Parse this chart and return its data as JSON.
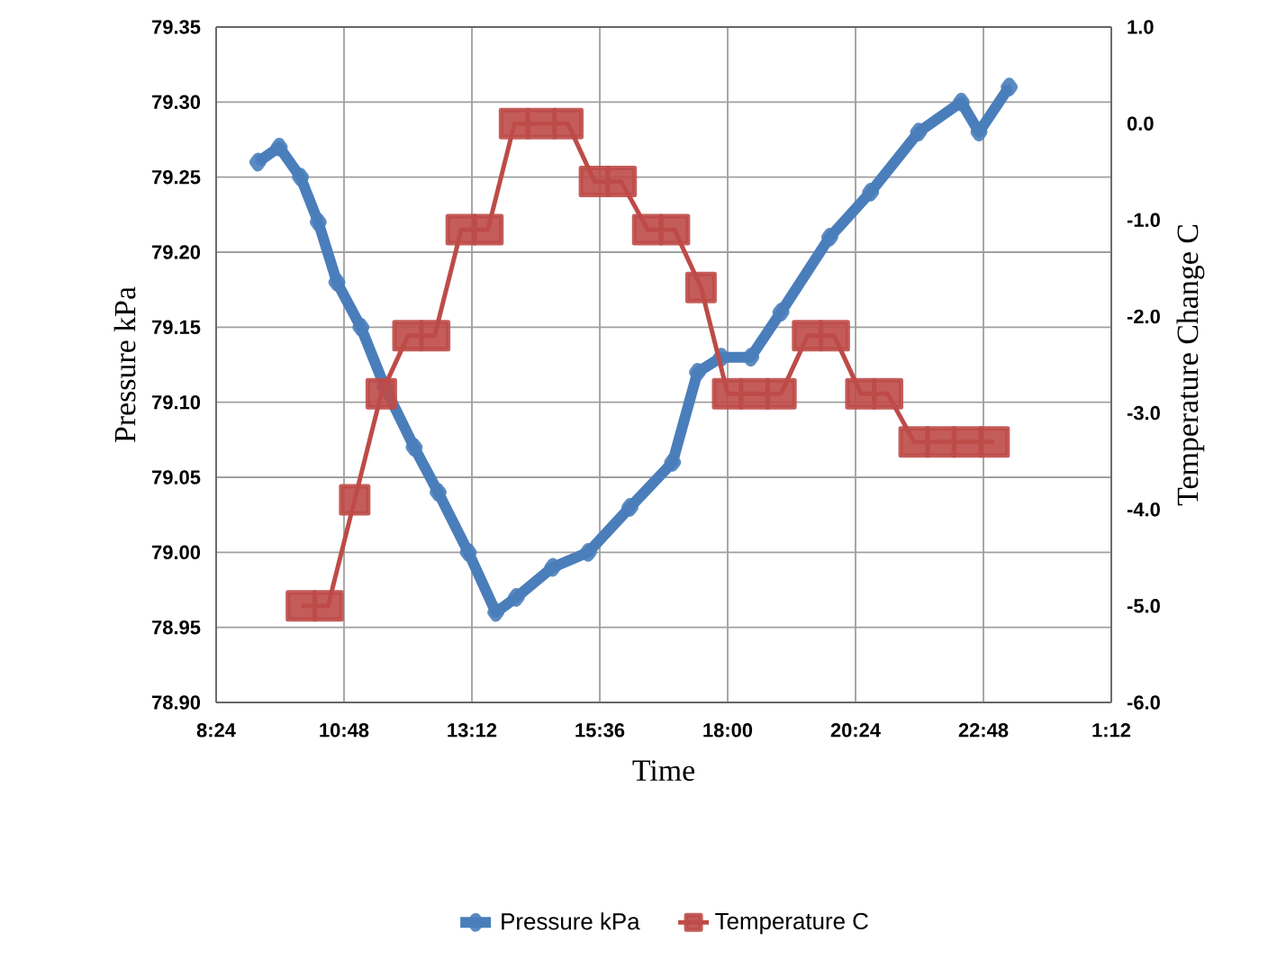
{
  "chart_data": {
    "type": "line",
    "xlabel": "Time",
    "ylabel": "Pressure kPa",
    "y2label": "Temperature Change C",
    "xlim": [
      "2000-01-01T08:24",
      "2000-01-02T01:12"
    ],
    "xticks": [
      {
        "value": "2000-01-01T08:24",
        "label": "8:24"
      },
      {
        "value": "2000-01-01T10:48",
        "label": "10:48"
      },
      {
        "value": "2000-01-01T13:12",
        "label": "13:12"
      },
      {
        "value": "2000-01-01T15:36",
        "label": "15:36"
      },
      {
        "value": "2000-01-01T18:00",
        "label": "18:00"
      },
      {
        "value": "2000-01-01T20:24",
        "label": "20:24"
      },
      {
        "value": "2000-01-01T22:48",
        "label": "22:48"
      },
      {
        "value": "2000-01-02T01:12",
        "label": "1:12"
      }
    ],
    "ylim": [
      78.9,
      79.35
    ],
    "yticks": [
      {
        "value": 78.9,
        "label": "78.90"
      },
      {
        "value": 78.95,
        "label": "78.95"
      },
      {
        "value": 79.0,
        "label": "79.00"
      },
      {
        "value": 79.05,
        "label": "79.05"
      },
      {
        "value": 79.1,
        "label": "79.10"
      },
      {
        "value": 79.15,
        "label": "79.15"
      },
      {
        "value": 79.2,
        "label": "79.20"
      },
      {
        "value": 79.25,
        "label": "79.25"
      },
      {
        "value": 79.3,
        "label": "79.30"
      },
      {
        "value": 79.35,
        "label": "79.35"
      }
    ],
    "y2lim": [
      -6.0,
      1.0
    ],
    "y2ticks": [
      {
        "value": -6.0,
        "label": "-6.0"
      },
      {
        "value": -5.0,
        "label": "-5.0"
      },
      {
        "value": -4.0,
        "label": "-4.0"
      },
      {
        "value": -3.0,
        "label": "-3.0"
      },
      {
        "value": -2.0,
        "label": "-2.0"
      },
      {
        "value": -1.0,
        "label": "-1.0"
      },
      {
        "value": 0.0,
        "label": "0.0"
      },
      {
        "value": 1.0,
        "label": "1.0"
      }
    ],
    "grid": true,
    "legend": "bottom",
    "series": [
      {
        "name": "Pressure kPa",
        "color": "#4a7ebb",
        "marker": "diamond",
        "x": [
          "2000-01-01T09:11",
          "2000-01-01T09:35",
          "2000-01-01T09:59",
          "2000-01-01T10:19",
          "2000-01-01T10:40",
          "2000-01-01T11:07",
          "2000-01-01T11:34",
          "2000-01-01T12:07",
          "2000-01-01T12:34",
          "2000-01-01T13:08",
          "2000-01-01T13:39",
          "2000-01-01T14:02",
          "2000-01-01T14:43",
          "2000-01-01T15:23",
          "2000-01-01T16:10",
          "2000-01-01T16:58",
          "2000-01-01T17:26",
          "2000-01-01T17:53",
          "2000-01-01T18:26",
          "2000-01-01T19:00",
          "2000-01-01T19:55",
          "2000-01-01T20:41",
          "2000-01-01T21:35",
          "2000-01-01T22:23",
          "2000-01-01T22:43",
          "2000-01-01T23:17"
        ],
        "values": [
          79.26,
          79.27,
          79.25,
          79.22,
          79.18,
          79.15,
          79.11,
          79.07,
          79.04,
          79.0,
          78.96,
          78.97,
          78.99,
          79.0,
          79.03,
          79.06,
          79.12,
          79.13,
          79.13,
          79.16,
          79.21,
          79.24,
          79.28,
          79.3,
          79.28,
          79.31
        ]
      },
      {
        "name": "Temperature C",
        "color": "#be4b48",
        "marker": "square",
        "axis": "y2",
        "x": [
          "2000-01-01T10:00",
          "2000-01-01T10:30",
          "2000-01-01T11:00",
          "2000-01-01T11:30",
          "2000-01-01T12:00",
          "2000-01-01T12:30",
          "2000-01-01T13:00",
          "2000-01-01T13:30",
          "2000-01-01T14:00",
          "2000-01-01T14:30",
          "2000-01-01T15:00",
          "2000-01-01T15:30",
          "2000-01-01T16:00",
          "2000-01-01T16:30",
          "2000-01-01T17:00",
          "2000-01-01T17:30",
          "2000-01-01T18:00",
          "2000-01-01T18:30",
          "2000-01-01T19:00",
          "2000-01-01T19:30",
          "2000-01-01T20:00",
          "2000-01-01T20:30",
          "2000-01-01T21:00",
          "2000-01-01T21:30",
          "2000-01-01T22:00",
          "2000-01-01T22:30",
          "2000-01-01T23:00"
        ],
        "values": [
          -5.0,
          -5.0,
          -3.9,
          -2.8,
          -2.2,
          -2.2,
          -1.1,
          -1.1,
          0.0,
          0.0,
          0.0,
          -0.6,
          -0.6,
          -1.1,
          -1.1,
          -1.7,
          -2.8,
          -2.8,
          -2.8,
          -2.2,
          -2.2,
          -2.8,
          -2.8,
          -3.3,
          -3.3,
          -3.3,
          -3.3
        ]
      }
    ]
  }
}
